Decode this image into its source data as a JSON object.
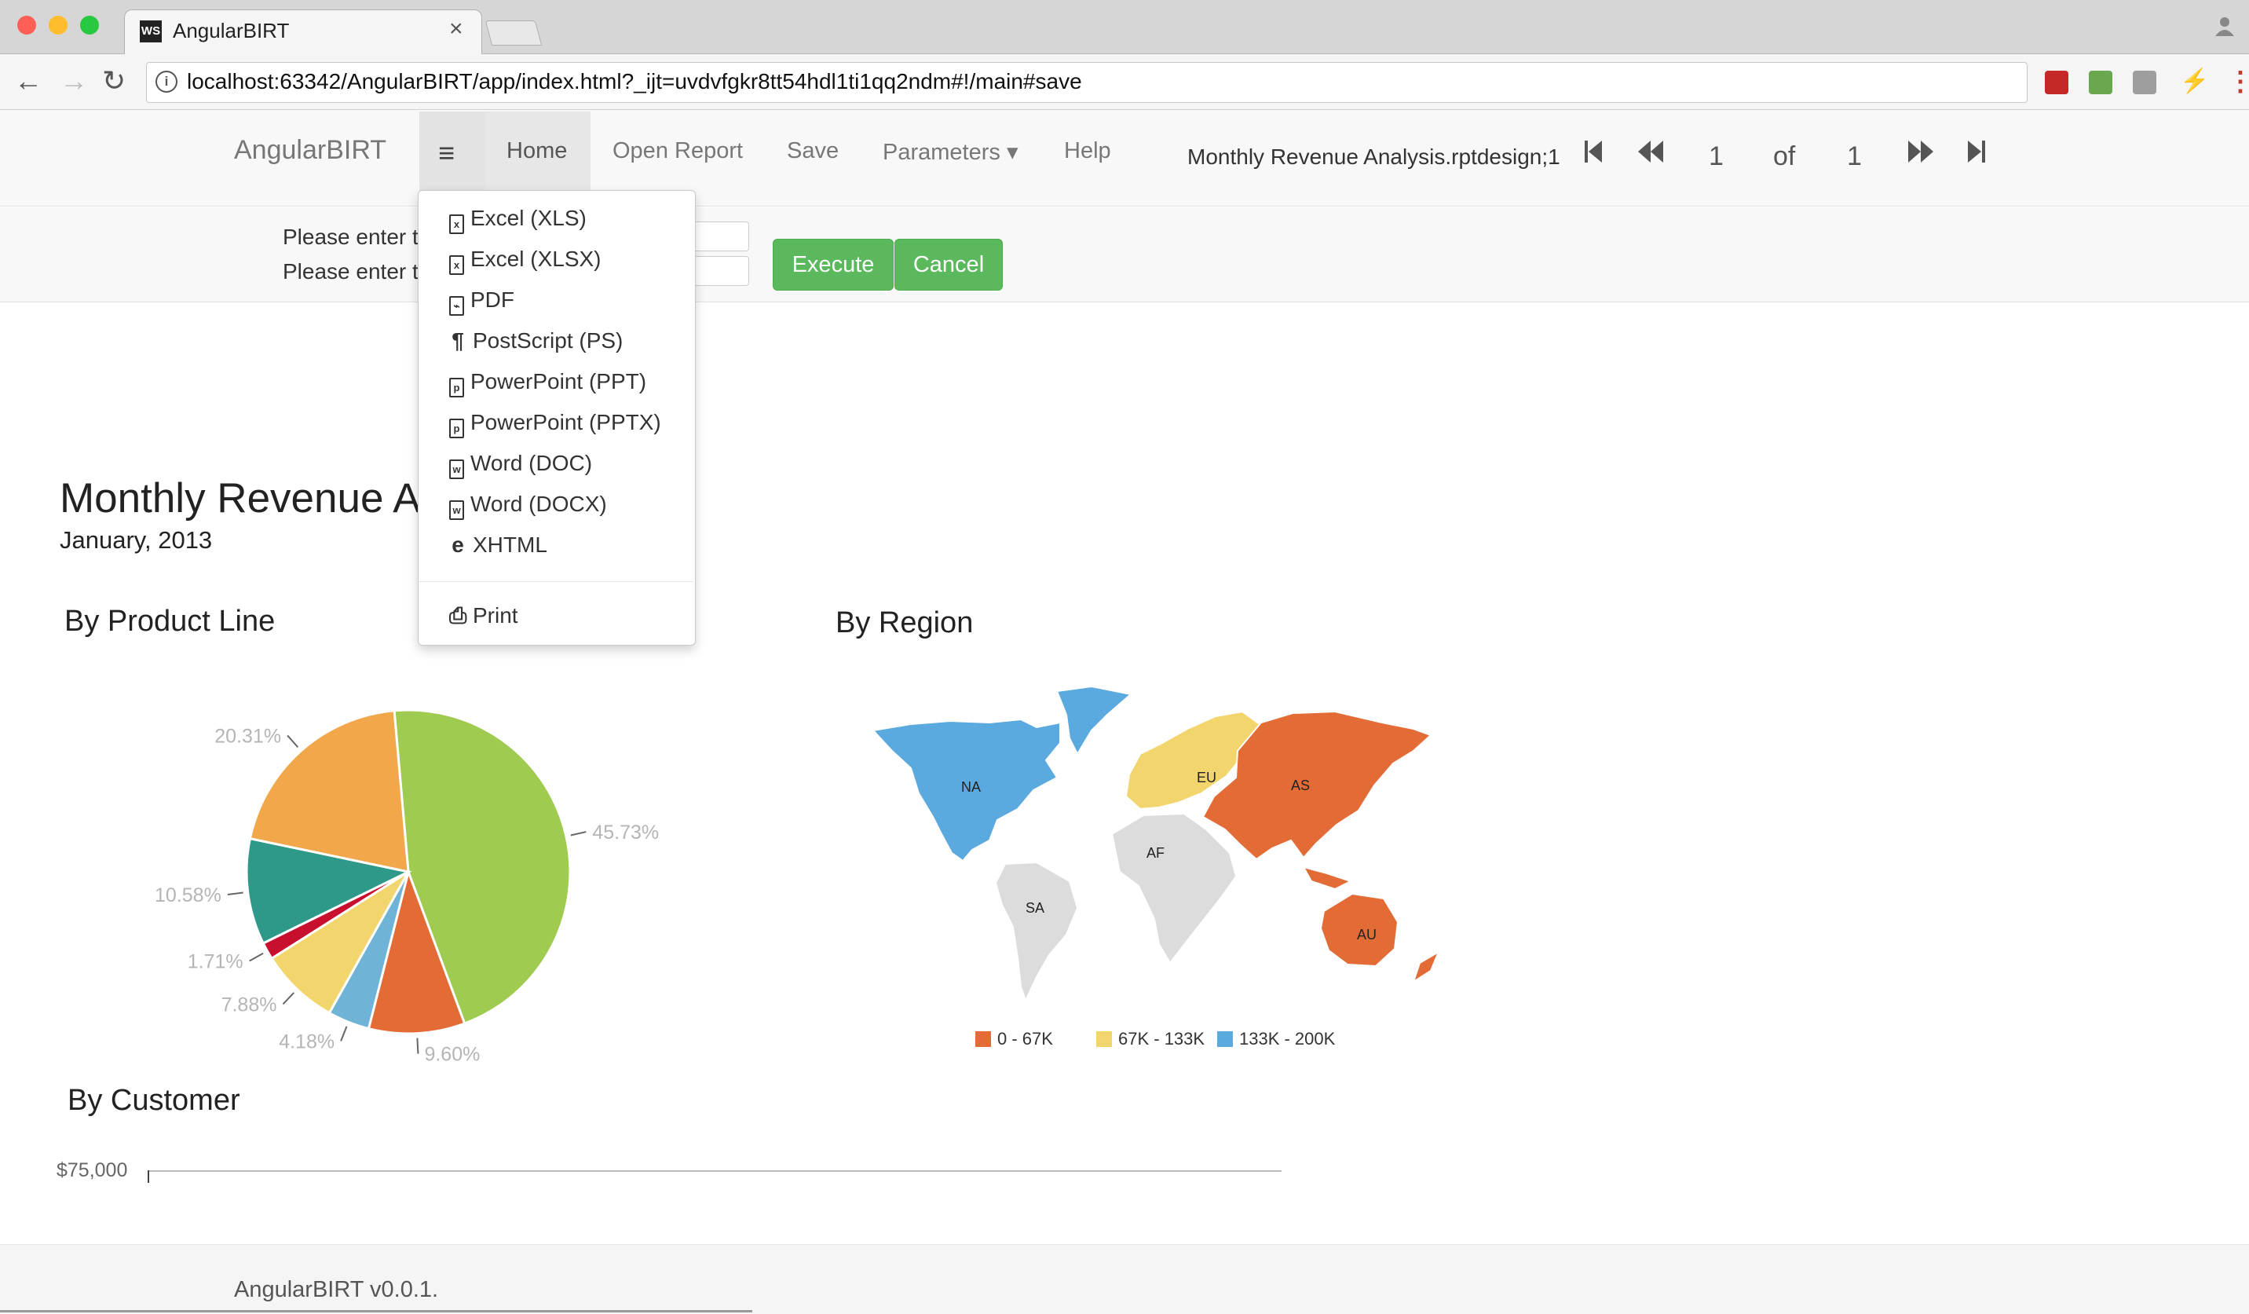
{
  "browser": {
    "tab_title": "AngularBIRT",
    "favicon_text": "WS",
    "tab_close": "×",
    "url": "localhost:63342/AngularBIRT/app/index.html?_ijt=uvdvfgkr8tt54hdl1ti1qq2ndm#!/main#save",
    "extensions": [
      "extension-red",
      "cors-extension",
      "extension-gray",
      "lightning-extension"
    ],
    "colors": {
      "close": "#ff5f57",
      "minimize": "#ffbd2e",
      "zoom": "#28c940"
    }
  },
  "navbar": {
    "brand": "AngularBIRT",
    "menu_icon": "≡",
    "links": {
      "home": "Home",
      "open_report": "Open Report",
      "save": "Save",
      "parameters": "Parameters ▾",
      "help": "Help"
    },
    "report_name": "Monthly Revenue Analysis.rptdesign;1",
    "pager": {
      "current_page": "1",
      "of_label": "of",
      "total_pages": "1"
    }
  },
  "parameters_bar": {
    "label_1": "Please enter t",
    "label_2": "Please enter t",
    "execute_label": "Execute",
    "cancel_label": "Cancel"
  },
  "save_menu": {
    "items": [
      {
        "icon": "excel-icon",
        "glyph": "x",
        "label": "Excel (XLS)"
      },
      {
        "icon": "excel-icon",
        "glyph": "x",
        "label": "Excel (XLSX)"
      },
      {
        "icon": "pdf-icon",
        "glyph": "⌁",
        "label": "PDF"
      },
      {
        "icon": "paragraph-icon",
        "glyph": "¶",
        "label": "PostScript (PS)"
      },
      {
        "icon": "powerpoint-icon",
        "glyph": "p",
        "label": "PowerPoint (PPT)"
      },
      {
        "icon": "powerpoint-icon",
        "glyph": "p",
        "label": "PowerPoint (PPTX)"
      },
      {
        "icon": "word-icon",
        "glyph": "w",
        "label": "Word (DOC)"
      },
      {
        "icon": "word-icon",
        "glyph": "w",
        "label": "Word (DOCX)"
      },
      {
        "icon": "ie-icon",
        "glyph": "e",
        "label": "XHTML"
      }
    ],
    "print": {
      "icon": "print-icon",
      "glyph": "⎙",
      "label": "Print"
    }
  },
  "report": {
    "title": "Monthly Revenue A",
    "date": "January, 2013",
    "product_line_title": "By Product Line",
    "region_title": "By Region",
    "customer_title": "By Customer",
    "customer_axis_label": "$75,000"
  },
  "chart_data": [
    {
      "type": "pie",
      "title": "By Product Line",
      "values": [
        45.73,
        9.6,
        4.18,
        7.88,
        1.71,
        10.58,
        20.31
      ],
      "labels": [
        "45.73%",
        "9.60%",
        "4.18%",
        "7.88%",
        "1.71%",
        "10.58%",
        "20.31%"
      ],
      "colors": [
        "#9fcb51",
        "#e36b35",
        "#6fb3d6",
        "#f2d66d",
        "#c8102e",
        "#2f9989",
        "#f2a74b"
      ]
    },
    {
      "type": "map",
      "title": "By Region",
      "regions": [
        {
          "name": "NA",
          "bucket": "133K - 200K"
        },
        {
          "name": "EU",
          "bucket": "67K - 133K"
        },
        {
          "name": "AS",
          "bucket": "0 - 67K"
        },
        {
          "name": "AF",
          "bucket": "none"
        },
        {
          "name": "SA",
          "bucket": "none"
        },
        {
          "name": "AU",
          "bucket": "0 - 67K"
        }
      ],
      "legend": [
        {
          "label": "0 - 67K",
          "color": "#e36b35"
        },
        {
          "label": "67K - 133K",
          "color": "#f2d66d"
        },
        {
          "label": "133K - 200K",
          "color": "#5aa9df"
        }
      ]
    }
  ],
  "footer": {
    "text": "AngularBIRT v0.0.1."
  }
}
